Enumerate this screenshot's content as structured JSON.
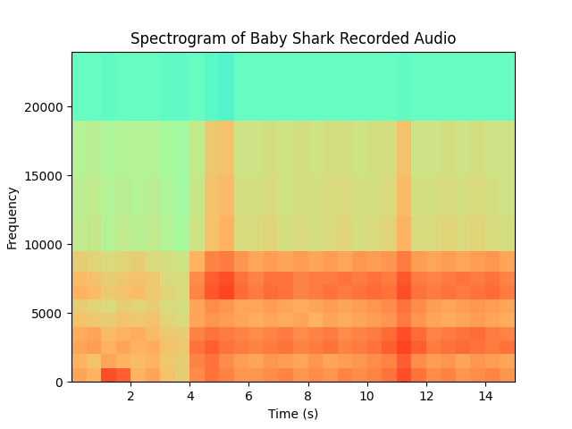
{
  "chart_data": {
    "type": "heatmap",
    "title": "Spectrogram of Baby Shark Recorded Audio",
    "x_label": "Time (s)",
    "y_label": "Frequency",
    "xlim": [
      0,
      15
    ],
    "ylim": [
      0,
      24000
    ],
    "xticks": [
      2,
      4,
      6,
      8,
      10,
      12,
      14
    ],
    "yticks": [
      0,
      5000,
      10000,
      15000,
      20000
    ],
    "x_edges": [
      0,
      0.5,
      1,
      1.5,
      2,
      2.5,
      3,
      3.5,
      4,
      4.5,
      5,
      5.5,
      6,
      6.5,
      7,
      7.5,
      8,
      8.5,
      9,
      9.5,
      10,
      10.5,
      11,
      11.5,
      12,
      12.5,
      13,
      13.5,
      14,
      14.5,
      15
    ],
    "y_edges": [
      0,
      1000,
      2000,
      3000,
      4000,
      5000,
      6000,
      7000,
      8000,
      9500,
      12000,
      15000,
      19000,
      24000
    ],
    "color_range": [
      -120,
      -40
    ],
    "cells": [
      [
        -58,
        -60,
        -48,
        -50,
        -60,
        -58,
        -62,
        -64,
        -55,
        -52,
        -54,
        -56,
        -56,
        -55,
        -54,
        -56,
        -55,
        -56,
        -54,
        -55,
        -54,
        -52,
        -48,
        -52,
        -55,
        -54,
        -56,
        -55,
        -54,
        -56
      ],
      [
        -60,
        -62,
        -58,
        -60,
        -61,
        -60,
        -63,
        -64,
        -54,
        -52,
        -55,
        -57,
        -58,
        -56,
        -57,
        -58,
        -56,
        -58,
        -57,
        -56,
        -55,
        -54,
        -50,
        -55,
        -57,
        -56,
        -58,
        -56,
        -57,
        -58
      ],
      [
        -58,
        -57,
        -60,
        -58,
        -60,
        -59,
        -62,
        -63,
        -52,
        -50,
        -52,
        -53,
        -54,
        -53,
        -52,
        -54,
        -53,
        -52,
        -54,
        -53,
        -52,
        -50,
        -47,
        -50,
        -53,
        -52,
        -51,
        -52,
        -53,
        -52
      ],
      [
        -59,
        -58,
        -61,
        -60,
        -59,
        -61,
        -63,
        -64,
        -54,
        -52,
        -53,
        -54,
        -55,
        -54,
        -53,
        -55,
        -54,
        -53,
        -55,
        -54,
        -53,
        -51,
        -48,
        -51,
        -54,
        -53,
        -52,
        -51,
        -53,
        -54
      ],
      [
        -62,
        -63,
        -64,
        -62,
        -63,
        -62,
        -65,
        -66,
        -58,
        -56,
        -57,
        -58,
        -59,
        -58,
        -59,
        -58,
        -60,
        -58,
        -59,
        -58,
        -57,
        -56,
        -53,
        -56,
        -58,
        -59,
        -58,
        -57,
        -58,
        -59
      ],
      [
        -64,
        -65,
        -66,
        -64,
        -65,
        -64,
        -66,
        -67,
        -58,
        -55,
        -56,
        -58,
        -58,
        -57,
        -58,
        -59,
        -58,
        -57,
        -58,
        -57,
        -56,
        -55,
        -52,
        -55,
        -57,
        -58,
        -57,
        -56,
        -57,
        -58
      ],
      [
        -60,
        -61,
        -63,
        -62,
        -61,
        -63,
        -65,
        -66,
        -54,
        -49,
        -47,
        -51,
        -53,
        -51,
        -52,
        -54,
        -53,
        -52,
        -53,
        -52,
        -51,
        -52,
        -48,
        -52,
        -53,
        -52,
        -53,
        -52,
        -51,
        -53
      ],
      [
        -61,
        -62,
        -64,
        -63,
        -62,
        -63,
        -66,
        -66,
        -55,
        -50,
        -48,
        -52,
        -54,
        -52,
        -52,
        -54,
        -53,
        -53,
        -52,
        -53,
        -52,
        -53,
        -49,
        -53,
        -54,
        -53,
        -52,
        -53,
        -52,
        -54
      ],
      [
        -64,
        -65,
        -66,
        -65,
        -64,
        -66,
        -67,
        -68,
        -60,
        -54,
        -53,
        -56,
        -58,
        -57,
        -58,
        -57,
        -58,
        -57,
        -58,
        -56,
        -57,
        -56,
        -53,
        -57,
        -58,
        -57,
        -58,
        -57,
        -56,
        -58
      ],
      [
        -70,
        -69,
        -72,
        -70,
        -71,
        -70,
        -72,
        -74,
        -68,
        -62,
        -60,
        -66,
        -66,
        -65,
        -67,
        -66,
        -67,
        -66,
        -65,
        -67,
        -66,
        -65,
        -60,
        -66,
        -66,
        -65,
        -66,
        -65,
        -66,
        -67
      ],
      [
        -71,
        -70,
        -72,
        -71,
        -72,
        -71,
        -73,
        -75,
        -69,
        -62,
        -61,
        -67,
        -67,
        -66,
        -68,
        -67,
        -67,
        -66,
        -66,
        -67,
        -67,
        -66,
        -61,
        -67,
        -67,
        -66,
        -67,
        -66,
        -67,
        -68
      ],
      [
        -72,
        -71,
        -73,
        -72,
        -72,
        -72,
        -74,
        -75,
        -70,
        -63,
        -62,
        -68,
        -68,
        -67,
        -68,
        -67,
        -68,
        -67,
        -67,
        -68,
        -67,
        -67,
        -62,
        -68,
        -68,
        -67,
        -68,
        -67,
        -68,
        -68
      ],
      [
        -84,
        -84,
        -85,
        -84,
        -84,
        -84,
        -85,
        -85,
        -84,
        -86,
        -87,
        -84,
        -84,
        -84,
        -84,
        -84,
        -84,
        -84,
        -84,
        -84,
        -84,
        -84,
        -85,
        -84,
        -84,
        -84,
        -84,
        -84,
        -84,
        -84
      ]
    ]
  }
}
